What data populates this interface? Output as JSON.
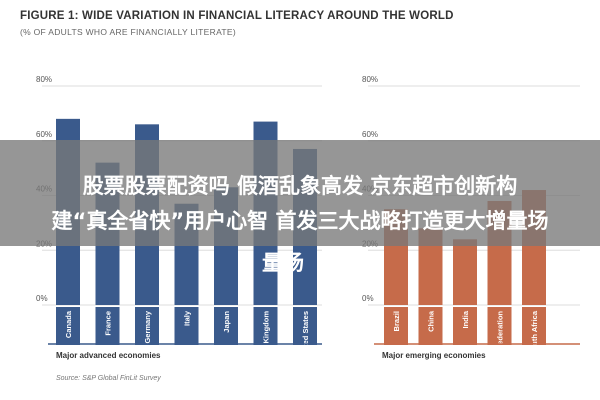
{
  "figure": {
    "title": "FIGURE 1: WIDE VARIATION IN FINANCIAL LITERACY AROUND THE WORLD",
    "subtitle": "(% OF ADULTS WHO ARE FINANCIALLY LITERATE)",
    "source": "Source: S&P Global FinLit Survey"
  },
  "overlay": {
    "line1": "股票股票配资吗 假酒乱象高发  京东超市创新构",
    "line2": "建“真全省快”用户心智 首发三大战略打造更大增量场",
    "line3": "量场"
  },
  "chart_data": [
    {
      "type": "bar",
      "categories": [
        "Canada",
        "France",
        "Germany",
        "Italy",
        "Japan",
        "United Kingdom",
        "United States"
      ],
      "values": [
        68,
        52,
        66,
        37,
        43,
        67,
        57
      ],
      "ylim": [
        0,
        80
      ],
      "yticks": [
        "0%",
        "20%",
        "40%",
        "60%",
        "80%"
      ],
      "group_label": "Major advanced economies",
      "grid": true,
      "color": "#3a5a8c",
      "title": "",
      "xlabel": "",
      "ylabel": ""
    },
    {
      "type": "bar",
      "categories": [
        "Brazil",
        "China",
        "India",
        "Russian Federation",
        "South Africa"
      ],
      "values": [
        35,
        28,
        24,
        38,
        42
      ],
      "ylim": [
        0,
        80
      ],
      "yticks": [
        "0%",
        "20%",
        "40%",
        "60%",
        "80%"
      ],
      "group_label": "Major emerging economies",
      "grid": true,
      "color": "#c66b4a",
      "title": "",
      "xlabel": "",
      "ylabel": ""
    }
  ]
}
